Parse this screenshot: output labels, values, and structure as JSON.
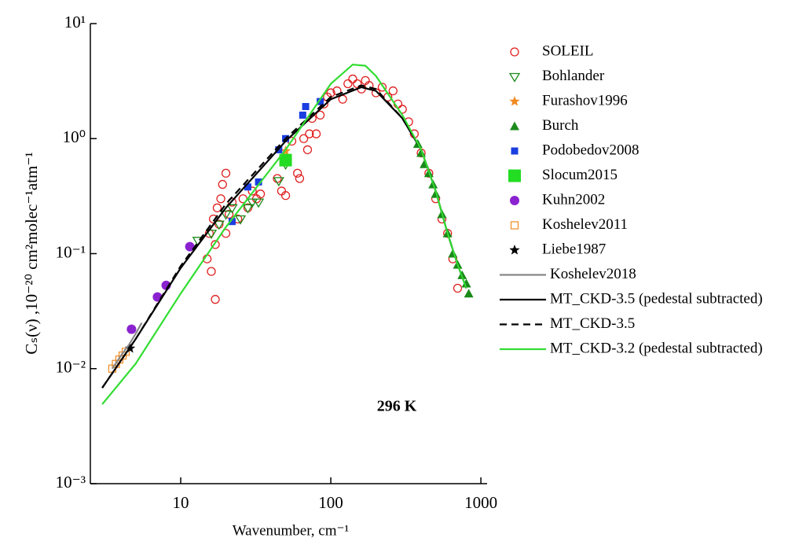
{
  "chart_data": {
    "type": "scatter",
    "xlabel": "Wavenumber, cm⁻¹",
    "ylabel": "Cₛ(ν) ,10⁻²⁰ cm²molec⁻¹atm⁻¹",
    "annotation": "296 K",
    "xscale": "log",
    "yscale": "log",
    "xlim": [
      2.5,
      1100
    ],
    "ylim": [
      0.001,
      10
    ],
    "xticks": [
      10,
      100,
      1000
    ],
    "yticks": [
      {
        "value": 0.001,
        "label": "10⁻³"
      },
      {
        "value": 0.01,
        "label": "10⁻²"
      },
      {
        "value": 0.1,
        "label": "10⁻¹"
      },
      {
        "value": 1,
        "label": "10⁰"
      },
      {
        "value": 10,
        "label": "10¹"
      }
    ],
    "series": [
      {
        "name": "SOLEIL",
        "color": "#e02020",
        "marker": "circle-open",
        "x": [
          15,
          15.5,
          16,
          16.5,
          17,
          17,
          17.5,
          18,
          18.5,
          19,
          20,
          20,
          21,
          22,
          24,
          26,
          28,
          30,
          32,
          34,
          44,
          47,
          50,
          55,
          60,
          62,
          66,
          70,
          72,
          75,
          80,
          85,
          90,
          95,
          100,
          110,
          120,
          130,
          140,
          150,
          160,
          170,
          180,
          200,
          220,
          240,
          260,
          280,
          300,
          330,
          360,
          400,
          450,
          500,
          550,
          600,
          650,
          700
        ],
        "values": [
          0.09,
          0.15,
          0.07,
          0.2,
          0.04,
          0.12,
          0.25,
          0.18,
          0.3,
          0.4,
          0.5,
          0.15,
          0.22,
          0.28,
          0.2,
          0.3,
          0.25,
          0.35,
          0.3,
          0.33,
          0.45,
          0.35,
          0.32,
          0.95,
          0.5,
          0.45,
          1.0,
          0.8,
          1.1,
          1.5,
          1.1,
          1.6,
          2.0,
          2.3,
          2.5,
          2.6,
          2.2,
          3.0,
          3.3,
          3.0,
          2.7,
          3.2,
          2.9,
          2.5,
          2.8,
          2.3,
          2.6,
          2.0,
          1.8,
          1.4,
          1.1,
          0.75,
          0.5,
          0.3,
          0.2,
          0.15,
          0.09,
          0.05
        ]
      },
      {
        "name": "Bohlander",
        "color": "#1a8a1a",
        "marker": "triangle-down-open",
        "x": [
          13,
          16,
          18,
          20,
          22,
          25,
          28,
          30,
          33,
          45,
          50
        ],
        "values": [
          0.13,
          0.15,
          0.18,
          0.22,
          0.25,
          0.2,
          0.25,
          0.28,
          0.28,
          0.43,
          0.6
        ]
      },
      {
        "name": "Furashov1996",
        "color": "#f08a20",
        "marker": "star",
        "x": [
          50
        ],
        "values": [
          0.78
        ]
      },
      {
        "name": "Burch",
        "color": "#1a8a1a",
        "marker": "triangle-up",
        "x": [
          380,
          400,
          420,
          450,
          480,
          500,
          550,
          600,
          650,
          700,
          750,
          800,
          830
        ],
        "values": [
          0.9,
          0.75,
          0.6,
          0.5,
          0.4,
          0.33,
          0.22,
          0.15,
          0.1,
          0.08,
          0.065,
          0.055,
          0.045
        ]
      },
      {
        "name": "Podobedov2008",
        "color": "#1a3ee0",
        "marker": "square",
        "x": [
          22,
          28,
          33,
          45,
          50,
          65,
          68,
          85
        ],
        "values": [
          0.19,
          0.38,
          0.42,
          0.8,
          1.0,
          1.6,
          1.9,
          2.1
        ]
      },
      {
        "name": "Slocum2015",
        "color": "#22dd22",
        "marker": "square-big",
        "x": [
          50
        ],
        "values": [
          0.65
        ]
      },
      {
        "name": "Kuhn2002",
        "color": "#8a22d0",
        "marker": "circle",
        "x": [
          4.7,
          7,
          8,
          11.5
        ],
        "values": [
          0.022,
          0.042,
          0.053,
          0.115
        ]
      },
      {
        "name": "Koshelev2011",
        "color": "#f08a20",
        "marker": "square-open",
        "x": [
          3.5,
          3.7,
          3.9,
          4.1,
          4.3
        ],
        "values": [
          0.01,
          0.011,
          0.012,
          0.013,
          0.014
        ]
      },
      {
        "name": "Liebe1987",
        "color": "#000000",
        "marker": "star",
        "x": [
          4.6
        ],
        "values": [
          0.015
        ]
      },
      {
        "name": "Koshelev2018",
        "color": "#888888",
        "dash": "solid",
        "x": [
          3.5,
          4,
          4.5,
          5,
          5.5
        ],
        "values": [
          0.01,
          0.013,
          0.016,
          0.02,
          0.025
        ]
      },
      {
        "name": "MT_CKD-3.5 (pedestal subtracted)",
        "color": "#000000",
        "dash": "solid",
        "x": [
          3,
          5,
          10,
          20,
          50,
          100,
          160,
          200,
          300,
          400,
          500,
          600,
          700,
          800
        ],
        "values": [
          0.0068,
          0.018,
          0.075,
          0.25,
          0.95,
          2.2,
          2.8,
          2.6,
          1.5,
          0.8,
          0.35,
          0.15,
          0.08,
          0.05
        ]
      },
      {
        "name": "MT_CKD-3.5",
        "color": "#000000",
        "dash": "dashed",
        "x": [
          3,
          5,
          10,
          20,
          50,
          100,
          160,
          200,
          300,
          400,
          500,
          600,
          700,
          800
        ],
        "values": [
          0.0068,
          0.018,
          0.078,
          0.27,
          1.0,
          2.3,
          2.9,
          2.7,
          1.5,
          0.8,
          0.35,
          0.15,
          0.08,
          0.05
        ]
      },
      {
        "name": "MT_CKD-3.2 (pedestal subtracted)",
        "color": "#33dd33",
        "dash": "solid",
        "x": [
          3,
          5,
          10,
          20,
          50,
          100,
          140,
          170,
          200,
          300,
          400,
          500,
          600,
          700,
          800
        ],
        "values": [
          0.0049,
          0.011,
          0.045,
          0.17,
          0.8,
          3.0,
          4.4,
          4.3,
          3.5,
          1.6,
          0.8,
          0.35,
          0.15,
          0.08,
          0.05
        ]
      }
    ]
  }
}
